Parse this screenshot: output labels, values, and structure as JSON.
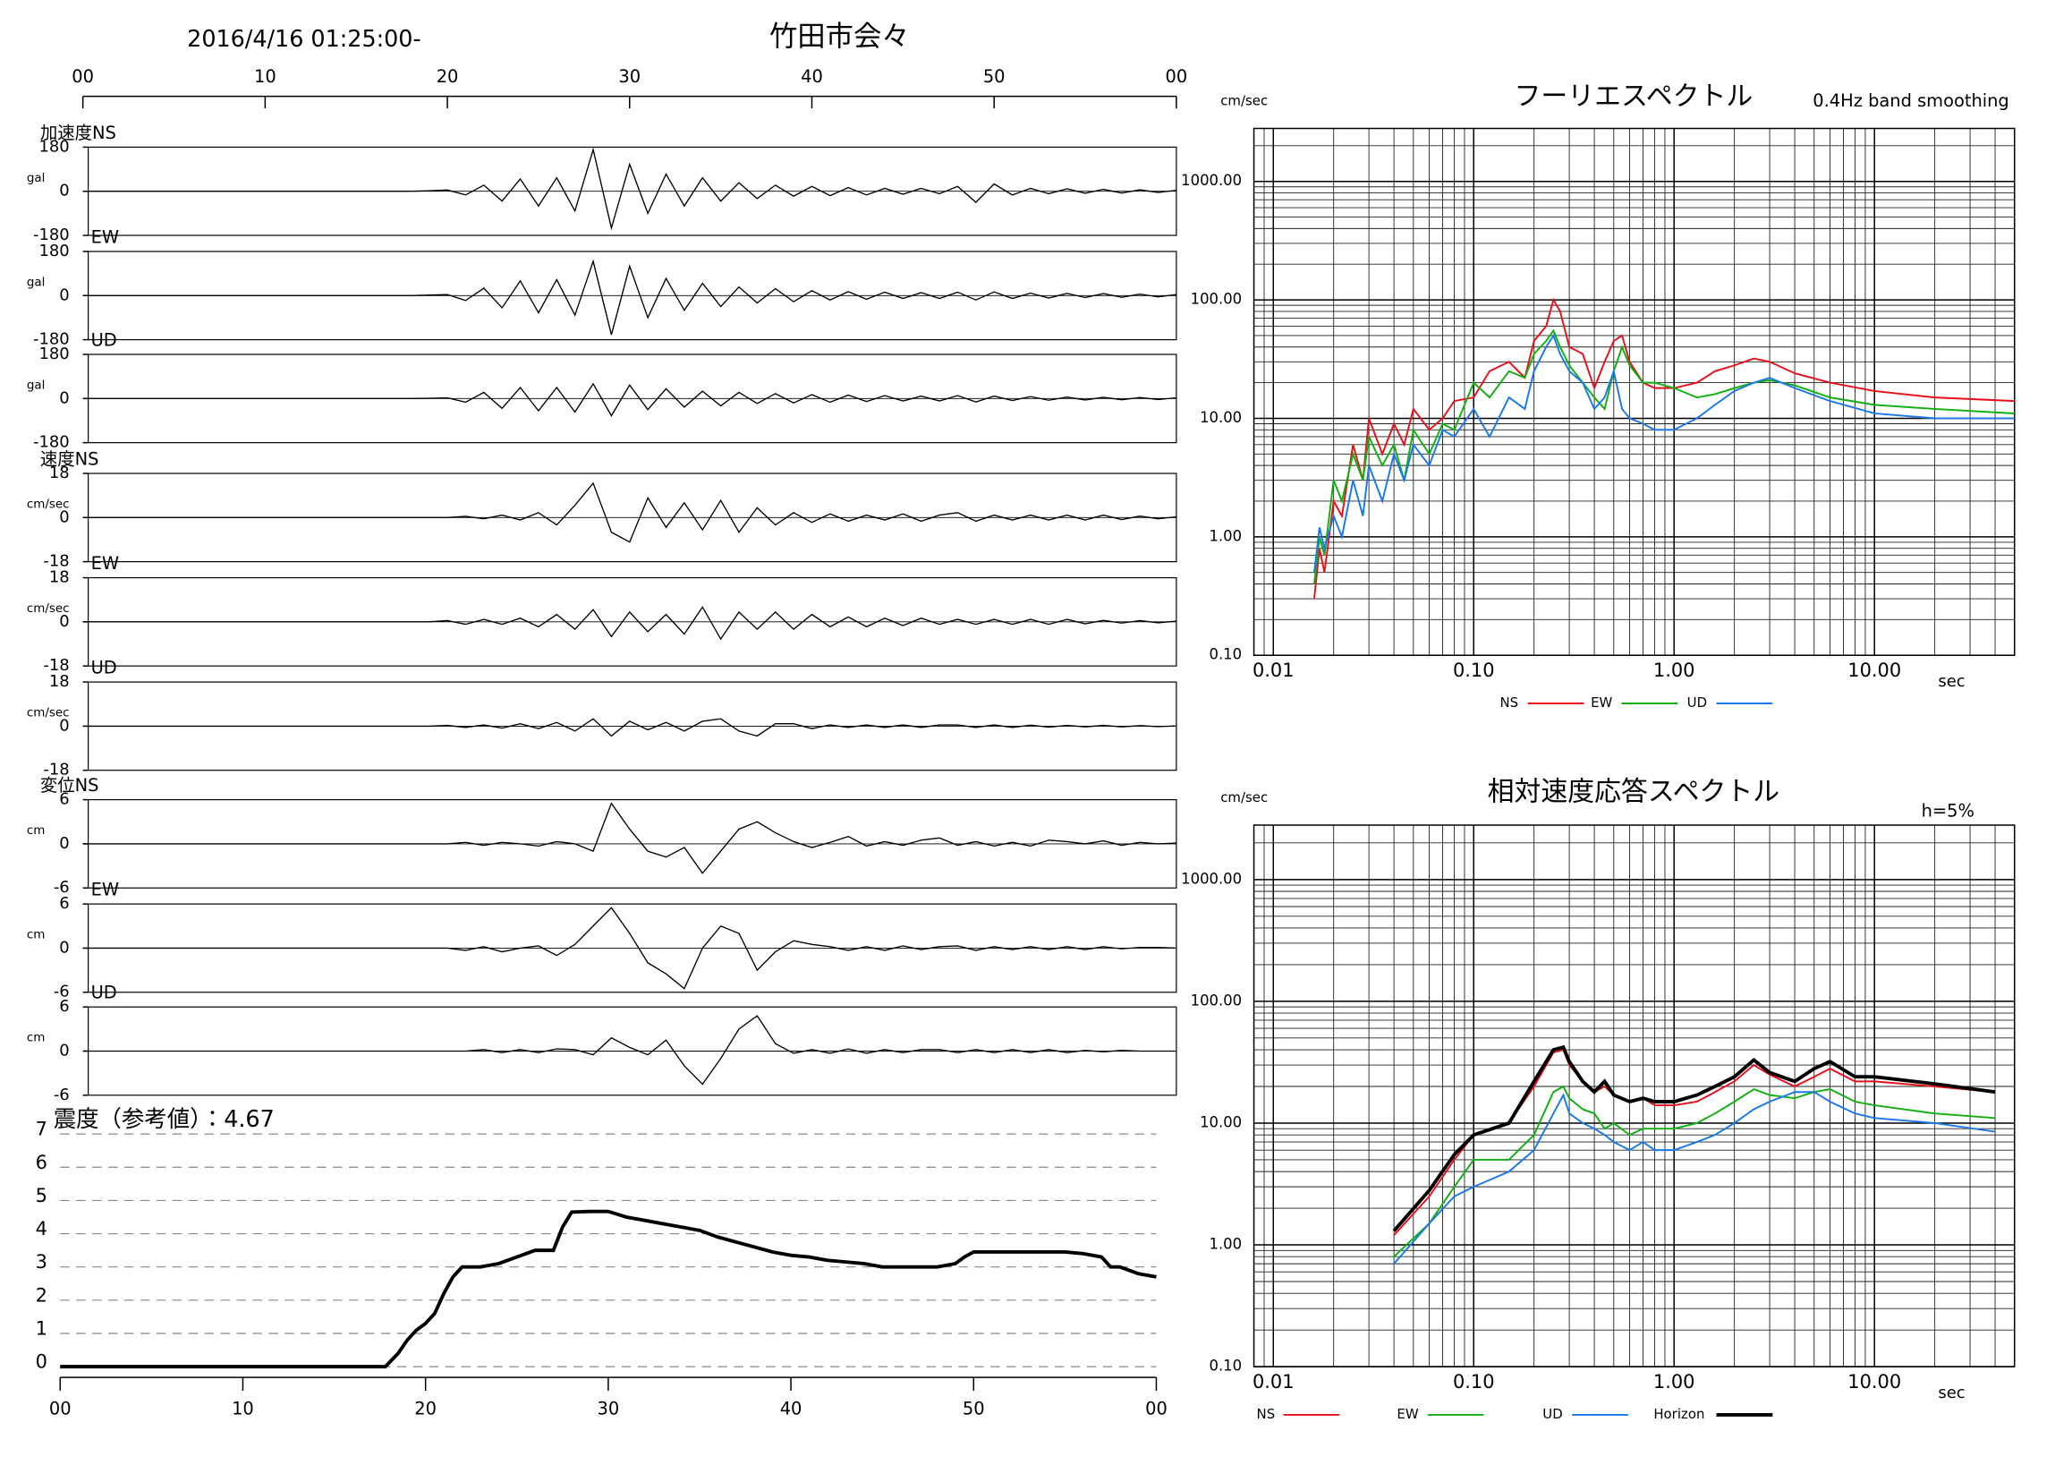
{
  "header": {
    "datetime": "2016/4/16 01:25:00-",
    "station": "竹田市会々"
  },
  "chart_data": [
    {
      "type": "waveform",
      "color": "#000000",
      "xlim": [
        0,
        60
      ],
      "xticks": [
        {
          "value": 0,
          "label": "00"
        },
        10,
        20,
        30,
        40,
        50,
        {
          "value": 60,
          "label": "00"
        }
      ],
      "x": [
        0,
        18,
        19,
        20,
        21,
        22,
        23,
        24,
        25,
        26,
        27,
        28,
        29,
        30,
        31,
        32,
        33,
        34,
        35,
        36,
        37,
        38,
        39,
        40,
        41,
        42,
        43,
        44,
        45,
        46,
        47,
        48,
        49,
        50,
        51,
        52,
        53,
        54,
        55,
        56,
        57,
        58,
        59,
        60
      ],
      "panels": [
        {
          "name": "加速度NS",
          "unit": "gal",
          "ylim": [
            -180,
            180
          ],
          "yticks": [
            -180,
            0,
            180
          ],
          "values": [
            0,
            0,
            2,
            5,
            -15,
            25,
            -40,
            50,
            -60,
            55,
            -80,
            170,
            -150,
            110,
            -90,
            70,
            -60,
            55,
            -40,
            35,
            -30,
            25,
            -20,
            20,
            -18,
            15,
            -15,
            12,
            -12,
            12,
            -10,
            20,
            -45,
            30,
            -15,
            12,
            -10,
            10,
            -8,
            8,
            -7,
            6,
            -5,
            4
          ]
        },
        {
          "name": "EW",
          "unit": "gal",
          "ylim": [
            -180,
            180
          ],
          "yticks": [
            -180,
            0,
            180
          ],
          "values": [
            0,
            0,
            2,
            4,
            -20,
            30,
            -50,
            60,
            -70,
            65,
            -80,
            140,
            -160,
            120,
            -90,
            70,
            -60,
            50,
            -45,
            35,
            -30,
            28,
            -25,
            20,
            -18,
            16,
            -15,
            14,
            -12,
            12,
            -12,
            14,
            -18,
            15,
            -12,
            10,
            -10,
            9,
            -8,
            8,
            -7,
            6,
            -5,
            4
          ]
        },
        {
          "name": "UD",
          "unit": "gal",
          "ylim": [
            -180,
            180
          ],
          "yticks": [
            -180,
            0,
            180
          ],
          "values": [
            0,
            0,
            1,
            3,
            -15,
            25,
            -40,
            45,
            -50,
            45,
            -55,
            60,
            -70,
            55,
            -45,
            40,
            -35,
            30,
            -30,
            25,
            -20,
            20,
            -18,
            16,
            -15,
            14,
            -12,
            12,
            -10,
            10,
            -10,
            12,
            -14,
            10,
            -8,
            8,
            -7,
            6,
            -6,
            5,
            -5,
            4,
            -4,
            3
          ]
        },
        {
          "name": "速度NS",
          "unit": "cm/sec",
          "ylim": [
            -18,
            18
          ],
          "yticks": [
            -18,
            0,
            18
          ],
          "values": [
            0,
            0,
            0,
            0,
            0.5,
            -0.5,
            1,
            -1,
            2,
            -3,
            5,
            14,
            -6,
            -10,
            8,
            -4,
            6,
            -5,
            7,
            -6,
            4,
            -3,
            2,
            -2,
            1.5,
            -1.5,
            1,
            -1,
            1.5,
            -1.5,
            1,
            2,
            -1.5,
            1,
            -1,
            1,
            -1,
            1,
            -1,
            1,
            -0.8,
            0.6,
            -0.5,
            0.3
          ]
        },
        {
          "name": "EW",
          "unit": "cm/sec",
          "ylim": [
            -18,
            18
          ],
          "yticks": [
            -18,
            0,
            18
          ],
          "values": [
            0,
            0,
            0,
            0.5,
            -1,
            1,
            -1,
            1.5,
            -2,
            3,
            -3,
            5,
            -6,
            4,
            -4,
            3,
            -5,
            6,
            -7,
            4,
            -3,
            4,
            -3,
            3,
            -2,
            2,
            -2,
            1.5,
            -1.5,
            1.5,
            -1,
            1,
            -1,
            1,
            -1,
            1,
            -1,
            1,
            -0.8,
            0.6,
            -0.5,
            0.5,
            -0.4,
            0.3
          ]
        },
        {
          "name": "UD",
          "unit": "cm/sec",
          "ylim": [
            -18,
            18
          ],
          "yticks": [
            -18,
            0,
            18
          ],
          "values": [
            0,
            0,
            0,
            0.3,
            -0.5,
            0.5,
            -0.8,
            1,
            -1,
            1.5,
            -2,
            3,
            -4,
            2,
            -1.5,
            1.5,
            -2,
            2,
            3,
            -2,
            -4,
            1,
            1,
            -1,
            0.5,
            -0.5,
            0.5,
            -0.5,
            0.5,
            -0.5,
            0.5,
            0.5,
            -0.5,
            0.5,
            -0.5,
            0.4,
            -0.4,
            0.3,
            -0.3,
            0.3,
            -0.3,
            0.2,
            -0.2,
            0.1
          ]
        },
        {
          "name": "変位NS",
          "unit": "cm",
          "ylim": [
            -6,
            6
          ],
          "yticks": [
            -6,
            0,
            6
          ],
          "values": [
            0,
            0,
            0,
            0,
            0.2,
            -0.2,
            0.2,
            0,
            -0.3,
            0.3,
            0,
            -1,
            5.5,
            2,
            -1,
            -1.8,
            -0.5,
            -4,
            -1,
            2,
            3,
            1.5,
            0.3,
            -0.5,
            0.2,
            1,
            -0.3,
            0.3,
            -0.2,
            0.5,
            0.8,
            -0.2,
            0.3,
            -0.3,
            0.2,
            -0.3,
            0.5,
            0.3,
            0,
            0.4,
            -0.2,
            0.2,
            0,
            0.1
          ]
        },
        {
          "name": "EW",
          "unit": "cm",
          "ylim": [
            -6,
            6
          ],
          "yticks": [
            -6,
            0,
            6
          ],
          "values": [
            0,
            0,
            0,
            0,
            -0.3,
            0.2,
            -0.5,
            0,
            0.3,
            -1,
            0.5,
            3,
            5.5,
            2,
            -2,
            -3.5,
            -5.5,
            0,
            3,
            2,
            -3,
            -0.5,
            1,
            0.5,
            0.2,
            -0.3,
            0.2,
            -0.3,
            0.3,
            -0.2,
            0.2,
            0.3,
            -0.3,
            0.2,
            -0.2,
            0.2,
            -0.2,
            0.2,
            -0.2,
            0.2,
            -0.1,
            0.1,
            0.1,
            0
          ]
        },
        {
          "name": "UD",
          "unit": "cm",
          "ylim": [
            -6,
            6
          ],
          "yticks": [
            -6,
            0,
            6
          ],
          "values": [
            0,
            0,
            0,
            0,
            0,
            0.2,
            -0.2,
            0.2,
            -0.2,
            0.3,
            0.2,
            -0.5,
            1.8,
            0.5,
            -0.5,
            1.5,
            -2,
            -4.5,
            -1,
            3,
            4.8,
            1,
            -0.3,
            0.2,
            -0.3,
            0.3,
            -0.3,
            0.2,
            -0.2,
            0.2,
            0.2,
            -0.2,
            0.2,
            -0.2,
            0.2,
            -0.2,
            0.2,
            -0.2,
            0.1,
            -0.1,
            0.1,
            0,
            0,
            0
          ]
        }
      ]
    },
    {
      "type": "line",
      "title": "震度（参考値）：4.67",
      "color": "#000000",
      "grid": true,
      "xlim": [
        0,
        60
      ],
      "xticks": [
        {
          "value": 0,
          "label": "00"
        },
        10,
        20,
        30,
        40,
        50,
        {
          "value": 60,
          "label": "00"
        }
      ],
      "ylim": [
        0,
        7
      ],
      "yticks": [
        0,
        1,
        2,
        3,
        4,
        5,
        6,
        7
      ],
      "x": [
        0,
        17.8,
        18.5,
        19,
        19.5,
        20,
        20.5,
        21,
        21.5,
        22,
        23,
        24,
        25,
        26,
        27,
        27.5,
        28,
        29,
        30,
        31,
        32,
        33,
        34,
        35,
        36,
        37,
        38,
        39,
        40,
        41,
        42,
        43,
        44,
        45,
        46,
        47,
        48,
        49,
        49.5,
        50,
        51,
        52,
        53,
        54,
        55,
        56,
        57,
        57.5,
        58,
        59,
        60
      ],
      "values": [
        0,
        0,
        0.4,
        0.8,
        1.1,
        1.3,
        1.6,
        2.2,
        2.7,
        3.0,
        3.0,
        3.1,
        3.3,
        3.5,
        3.5,
        4.2,
        4.65,
        4.67,
        4.67,
        4.5,
        4.4,
        4.3,
        4.2,
        4.1,
        3.9,
        3.75,
        3.6,
        3.45,
        3.35,
        3.3,
        3.2,
        3.15,
        3.1,
        3.0,
        3.0,
        3.0,
        3.0,
        3.1,
        3.3,
        3.45,
        3.45,
        3.45,
        3.45,
        3.45,
        3.45,
        3.4,
        3.3,
        3.0,
        3.0,
        2.8,
        2.7
      ]
    },
    {
      "type": "loglog",
      "title": "フーリエスペクトル",
      "subtitle": "0.4Hz band smoothing",
      "y_unit": "cm/sec",
      "x_unit": "sec",
      "log_x": true,
      "log_y": true,
      "grid": true,
      "xlim": [
        0.008,
        50
      ],
      "ylim": [
        0.1,
        2800
      ],
      "xticks": [
        {
          "value": 0.01,
          "label": "0.01"
        },
        {
          "value": 0.1,
          "label": "0.10"
        },
        {
          "value": 1,
          "label": "1.00"
        },
        {
          "value": 10,
          "label": "10.00"
        }
      ],
      "yticks": [
        {
          "value": 0.1,
          "label": "0.10"
        },
        {
          "value": 1,
          "label": "1.00"
        },
        {
          "value": 10,
          "label": "10.00"
        },
        {
          "value": 100,
          "label": "100.00"
        },
        {
          "value": 1000,
          "label": "1000.00"
        }
      ],
      "x": [
        0.016,
        0.017,
        0.018,
        0.02,
        0.022,
        0.025,
        0.028,
        0.03,
        0.035,
        0.04,
        0.045,
        0.05,
        0.06,
        0.07,
        0.08,
        0.1,
        0.12,
        0.15,
        0.18,
        0.2,
        0.23,
        0.25,
        0.27,
        0.3,
        0.35,
        0.4,
        0.45,
        0.5,
        0.55,
        0.6,
        0.7,
        0.8,
        1,
        1.3,
        1.6,
        2,
        2.5,
        3,
        4,
        6,
        10,
        20,
        50
      ],
      "series": [
        {
          "name": "NS",
          "color": "#e8101a",
          "values": [
            0.3,
            0.8,
            0.5,
            2,
            1.5,
            6,
            3,
            10,
            5,
            9,
            6,
            12,
            8,
            10,
            14,
            15,
            25,
            30,
            22,
            45,
            60,
            100,
            80,
            40,
            35,
            18,
            30,
            45,
            50,
            30,
            20,
            18,
            18,
            20,
            25,
            28,
            32,
            30,
            24,
            20,
            17,
            15,
            14
          ]
        },
        {
          "name": "EW",
          "color": "#10b010",
          "values": [
            0.4,
            1,
            0.7,
            3,
            2,
            5,
            3,
            7,
            4,
            6,
            3,
            8,
            5,
            9,
            8,
            20,
            15,
            25,
            22,
            35,
            45,
            55,
            40,
            28,
            20,
            15,
            12,
            25,
            40,
            28,
            20,
            20,
            18,
            15,
            16,
            18,
            20,
            21,
            19,
            15,
            13,
            12,
            11
          ]
        },
        {
          "name": "UD",
          "color": "#1a78e8",
          "values": [
            0.5,
            1.2,
            0.8,
            1.5,
            1,
            3,
            1.5,
            4,
            2,
            5,
            3,
            6,
            4,
            8,
            7,
            12,
            7,
            15,
            12,
            25,
            40,
            50,
            35,
            25,
            20,
            12,
            15,
            25,
            12,
            10,
            9,
            8,
            8,
            10,
            13,
            17,
            20,
            22,
            18,
            14,
            11,
            10,
            10
          ]
        }
      ]
    },
    {
      "type": "loglog",
      "title": "相対速度応答スペクトル",
      "subtitle": "h=5%",
      "y_unit": "cm/sec",
      "x_unit": "sec",
      "log_x": true,
      "log_y": true,
      "grid": true,
      "xlim": [
        0.008,
        50
      ],
      "ylim": [
        0.1,
        2800
      ],
      "xticks": [
        {
          "value": 0.01,
          "label": "0.01"
        },
        {
          "value": 0.1,
          "label": "0.10"
        },
        {
          "value": 1,
          "label": "1.00"
        },
        {
          "value": 10,
          "label": "10.00"
        }
      ],
      "yticks": [
        {
          "value": 0.1,
          "label": "0.10"
        },
        {
          "value": 1,
          "label": "1.00"
        },
        {
          "value": 10,
          "label": "10.00"
        },
        {
          "value": 100,
          "label": "100.00"
        },
        {
          "value": 1000,
          "label": "1000.00"
        }
      ],
      "x": [
        0.04,
        0.06,
        0.08,
        0.1,
        0.15,
        0.2,
        0.25,
        0.28,
        0.3,
        0.35,
        0.4,
        0.45,
        0.5,
        0.6,
        0.7,
        0.8,
        1,
        1.3,
        1.6,
        2,
        2.5,
        3,
        4,
        5,
        6,
        8,
        10,
        20,
        40
      ],
      "series": [
        {
          "name": "NS",
          "color": "#e8101a",
          "values": [
            1.2,
            2.5,
            5,
            8,
            10,
            20,
            38,
            40,
            30,
            22,
            18,
            20,
            17,
            15,
            16,
            14,
            14,
            15,
            18,
            22,
            30,
            25,
            20,
            24,
            28,
            22,
            22,
            20,
            18
          ]
        },
        {
          "name": "EW",
          "color": "#10b010",
          "values": [
            0.8,
            1.5,
            3,
            5,
            5,
            8,
            18,
            20,
            16,
            13,
            12,
            9,
            10,
            8,
            9,
            9,
            9,
            10,
            12,
            15,
            19,
            17,
            16,
            18,
            19,
            15,
            14,
            12,
            11
          ]
        },
        {
          "name": "UD",
          "color": "#1a78e8",
          "values": [
            0.7,
            1.5,
            2.5,
            3,
            4,
            6,
            12,
            17,
            12,
            10,
            9,
            8,
            7,
            6,
            7,
            6,
            6,
            7,
            8,
            10,
            13,
            15,
            18,
            18,
            15,
            12,
            11,
            10,
            8.5
          ]
        },
        {
          "name": "Horizon",
          "color": "#000000",
          "values": [
            1.3,
            2.8,
            5.5,
            8,
            10,
            22,
            40,
            42,
            32,
            22,
            18,
            22,
            17,
            15,
            16,
            15,
            15,
            17,
            20,
            24,
            33,
            26,
            22,
            28,
            32,
            24,
            24,
            21,
            18
          ]
        }
      ]
    }
  ]
}
